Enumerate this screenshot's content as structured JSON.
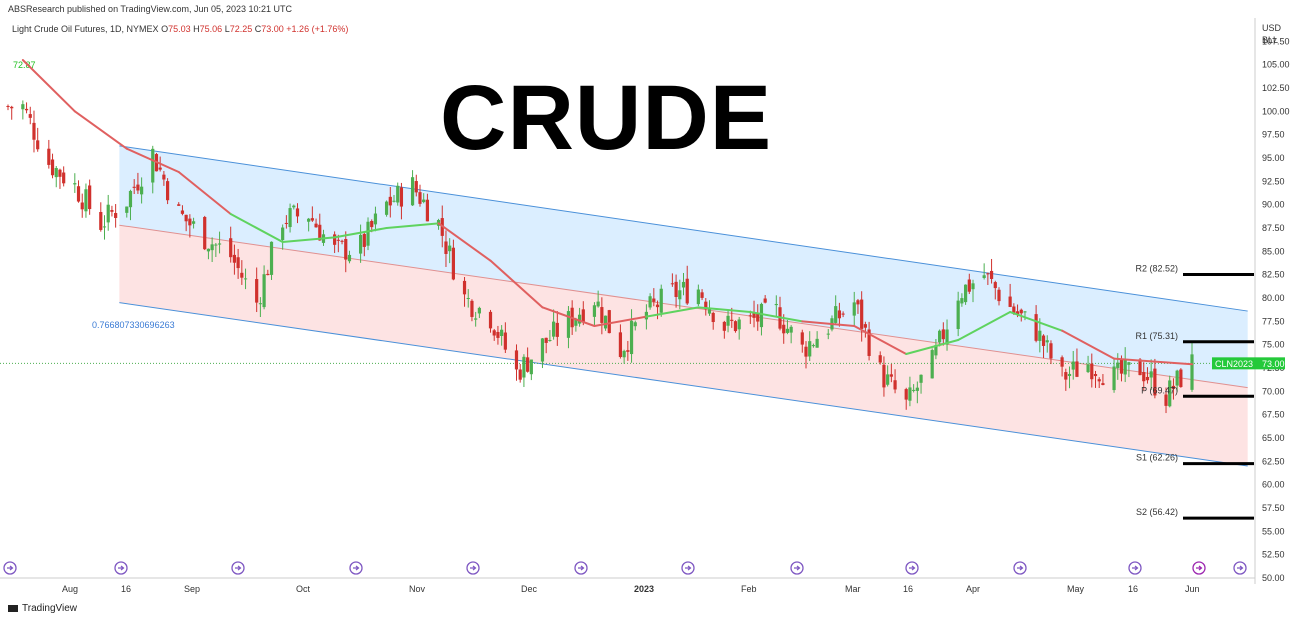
{
  "publisher": "ABSResearch published on TradingView.com, Jun 05, 2023 10:21 UTC",
  "legend": {
    "symbol": "Light Crude Oil Futures, 1D, NYMEX",
    "open_label": "O",
    "open": "75.03",
    "high_label": "H",
    "high": "75.06",
    "low_label": "L",
    "low": "72.25",
    "close_label": "C",
    "close": "73.00",
    "change": "+1.26 (+1.76%)"
  },
  "ma_value": "72.87",
  "big_title": "CRUDE",
  "currency": "USD",
  "unit": "BLL",
  "fib_label": "0.766807330696263",
  "price_tag": {
    "symbol": "CLN2023",
    "value": "73.00"
  },
  "footer": "TradingView",
  "colors": {
    "up": "#4caf50",
    "down": "#d0312d",
    "ma_red": "#e06060",
    "ma_green": "#5fd35f",
    "channel_upper_fill": "#dbeeff",
    "channel_lower_fill": "#fde3e3",
    "channel_line": "#4a90d9"
  },
  "chart_data": {
    "type": "candlestick",
    "ylim": [
      50,
      110
    ],
    "y_ticks": [
      "107.50",
      "105.00",
      "102.50",
      "100.00",
      "97.50",
      "95.00",
      "92.50",
      "90.00",
      "87.50",
      "85.00",
      "82.50",
      "80.00",
      "77.50",
      "75.00",
      "72.50",
      "70.00",
      "67.50",
      "65.00",
      "62.50",
      "60.00",
      "57.50",
      "55.00",
      "52.50",
      "50.00"
    ],
    "x_ticks": [
      "Aug",
      "16",
      "Sep",
      "Oct",
      "Nov",
      "Dec",
      "2023",
      "Feb",
      "Mar",
      "16",
      "Apr",
      "May",
      "16",
      "Jun"
    ],
    "pivots": [
      {
        "label": "R2 (82.52)",
        "value": 82.52
      },
      {
        "label": "R1 (75.31)",
        "value": 75.31
      },
      {
        "label": "P (69.47)",
        "value": 69.47
      },
      {
        "label": "S1 (62.26)",
        "value": 62.26
      },
      {
        "label": "S2 (56.42)",
        "value": 56.42
      }
    ],
    "channel": {
      "start": "2022-08-20",
      "end": "2023-06-20",
      "upper_start": 96.3,
      "upper_end": 78.6,
      "mid_start": 87.8,
      "mid_end": 70.4,
      "lower_start": 79.5,
      "lower_end": 62.0
    },
    "price_path": [
      [
        "2022-07-25",
        100.5
      ],
      [
        "2022-08-01",
        94.5
      ],
      [
        "2022-08-08",
        92.0
      ],
      [
        "2022-08-15",
        88.0
      ],
      [
        "2022-08-22",
        90.5
      ],
      [
        "2022-08-29",
        95.5
      ],
      [
        "2022-09-05",
        89.0
      ],
      [
        "2022-09-12",
        86.5
      ],
      [
        "2022-09-19",
        84.5
      ],
      [
        "2022-09-26",
        79.5
      ],
      [
        "2022-10-03",
        88.5
      ],
      [
        "2022-10-10",
        89.0
      ],
      [
        "2022-10-17",
        85.0
      ],
      [
        "2022-10-24",
        85.5
      ],
      [
        "2022-10-31",
        90.0
      ],
      [
        "2022-11-07",
        92.0
      ],
      [
        "2022-11-14",
        88.0
      ],
      [
        "2022-11-21",
        80.0
      ],
      [
        "2022-11-28",
        78.0
      ],
      [
        "2022-12-05",
        72.0
      ],
      [
        "2022-12-12",
        75.0
      ],
      [
        "2022-12-19",
        77.5
      ],
      [
        "2022-12-26",
        80.0
      ],
      [
        "2023-01-02",
        74.5
      ],
      [
        "2023-01-09",
        78.5
      ],
      [
        "2023-01-16",
        80.5
      ],
      [
        "2023-01-23",
        81.0
      ],
      [
        "2023-01-30",
        77.0
      ],
      [
        "2023-02-06",
        77.5
      ],
      [
        "2023-02-13",
        78.5
      ],
      [
        "2023-02-20",
        74.5
      ],
      [
        "2023-02-27",
        77.0
      ],
      [
        "2023-03-06",
        79.5
      ],
      [
        "2023-03-13",
        72.0
      ],
      [
        "2023-03-20",
        68.5
      ],
      [
        "2023-03-27",
        73.0
      ],
      [
        "2023-04-03",
        80.5
      ],
      [
        "2023-04-10",
        82.5
      ],
      [
        "2023-04-17",
        79.0
      ],
      [
        "2023-04-24",
        76.5
      ],
      [
        "2023-05-01",
        71.5
      ],
      [
        "2023-05-08",
        73.0
      ],
      [
        "2023-05-15",
        71.5
      ],
      [
        "2023-05-22",
        72.5
      ],
      [
        "2023-05-29",
        69.5
      ],
      [
        "2023-06-05",
        73.0
      ]
    ],
    "ma_path": [
      [
        "2022-07-25",
        105.5
      ],
      [
        "2022-08-08",
        100.0
      ],
      [
        "2022-08-22",
        96.0
      ],
      [
        "2022-09-05",
        93.5
      ],
      [
        "2022-09-19",
        89.0
      ],
      [
        "2022-10-03",
        86.0
      ],
      [
        "2022-10-17",
        86.5
      ],
      [
        "2022-10-31",
        87.5
      ],
      [
        "2022-11-14",
        88.0
      ],
      [
        "2022-11-28",
        84.0
      ],
      [
        "2022-12-12",
        79.0
      ],
      [
        "2022-12-26",
        77.0
      ],
      [
        "2023-01-09",
        78.0
      ],
      [
        "2023-01-23",
        79.0
      ],
      [
        "2023-02-06",
        78.5
      ],
      [
        "2023-02-20",
        77.5
      ],
      [
        "2023-03-06",
        77.0
      ],
      [
        "2023-03-20",
        74.0
      ],
      [
        "2023-04-03",
        75.5
      ],
      [
        "2023-04-17",
        78.5
      ],
      [
        "2023-05-01",
        76.5
      ],
      [
        "2023-05-15",
        73.5
      ],
      [
        "2023-06-05",
        72.9
      ]
    ]
  }
}
